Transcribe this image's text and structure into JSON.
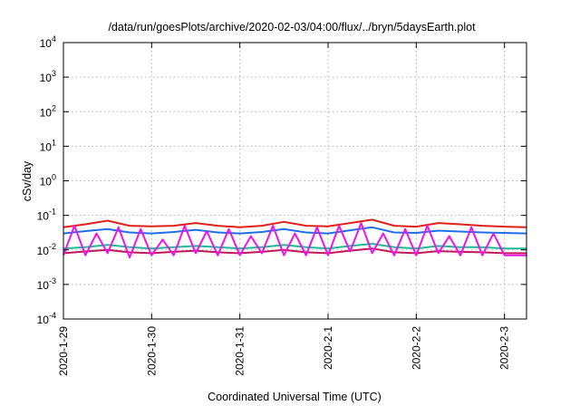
{
  "chart_data": {
    "type": "line",
    "title": "/data/run/goesPlots/archive/2020-02-03/04:00/flux/../bryn/5daysEarth.plot",
    "xlabel": "Coordinated Universal Time (UTC)",
    "ylabel": "cSv/day",
    "yscale": "log",
    "grid": true,
    "ylim": [
      0.0001,
      10000
    ],
    "xlim": [
      "2020-01-29",
      "2020-02-03 06:00"
    ],
    "x_ticks": [
      "2020-1-29",
      "2020-1-30",
      "2020-1-31",
      "2020-2-1",
      "2020-2-2",
      "2020-2-3"
    ],
    "y_ticks": [
      {
        "mantissa": "10",
        "exp": "4",
        "value": 10000
      },
      {
        "mantissa": "10",
        "exp": "3",
        "value": 1000
      },
      {
        "mantissa": "10",
        "exp": "2",
        "value": 100
      },
      {
        "mantissa": "10",
        "exp": "1",
        "value": 10
      },
      {
        "mantissa": "10",
        "exp": "0",
        "value": 1
      },
      {
        "mantissa": "10",
        "exp": "-1",
        "value": 0.1
      },
      {
        "mantissa": "10",
        "exp": "-2",
        "value": 0.01
      },
      {
        "mantissa": "10",
        "exp": "-3",
        "value": 0.001
      },
      {
        "mantissa": "10",
        "exp": "-4",
        "value": 0.0001
      }
    ],
    "series": [
      {
        "color": "#e0201a",
        "x": [
          "2020-01-29 00:00",
          "2020-01-29 06:00",
          "2020-01-29 12:00",
          "2020-01-29 18:00",
          "2020-01-30 00:00",
          "2020-01-30 06:00",
          "2020-01-30 12:00",
          "2020-01-30 18:00",
          "2020-01-31 00:00",
          "2020-01-31 06:00",
          "2020-01-31 12:00",
          "2020-01-31 18:00",
          "2020-02-01 00:00",
          "2020-02-01 06:00",
          "2020-02-01 12:00",
          "2020-02-01 18:00",
          "2020-02-02 00:00",
          "2020-02-02 06:00",
          "2020-02-02 12:00",
          "2020-02-02 18:00",
          "2020-02-03 00:00",
          "2020-02-03 06:00"
        ],
        "values": [
          0.045,
          0.055,
          0.07,
          0.05,
          0.048,
          0.05,
          0.06,
          0.05,
          0.045,
          0.05,
          0.065,
          0.05,
          0.048,
          0.06,
          0.075,
          0.05,
          0.047,
          0.06,
          0.055,
          0.05,
          0.047,
          0.045
        ]
      },
      {
        "color": "#1e6fe8",
        "x": [
          "2020-01-29 00:00",
          "2020-01-29 06:00",
          "2020-01-29 12:00",
          "2020-01-29 18:00",
          "2020-01-30 00:00",
          "2020-01-30 06:00",
          "2020-01-30 12:00",
          "2020-01-30 18:00",
          "2020-01-31 00:00",
          "2020-01-31 06:00",
          "2020-01-31 12:00",
          "2020-01-31 18:00",
          "2020-02-01 00:00",
          "2020-02-01 06:00",
          "2020-02-01 12:00",
          "2020-02-01 18:00",
          "2020-02-02 00:00",
          "2020-02-02 06:00",
          "2020-02-02 12:00",
          "2020-02-02 18:00",
          "2020-02-03 00:00",
          "2020-02-03 06:00"
        ],
        "values": [
          0.03,
          0.035,
          0.04,
          0.032,
          0.03,
          0.033,
          0.038,
          0.032,
          0.03,
          0.033,
          0.04,
          0.032,
          0.03,
          0.037,
          0.045,
          0.032,
          0.031,
          0.036,
          0.034,
          0.032,
          0.031,
          0.03
        ]
      },
      {
        "color": "#20b89a",
        "x": [
          "2020-01-29 00:00",
          "2020-01-29 06:00",
          "2020-01-29 12:00",
          "2020-01-29 18:00",
          "2020-01-30 00:00",
          "2020-01-30 06:00",
          "2020-01-30 12:00",
          "2020-01-30 18:00",
          "2020-01-31 00:00",
          "2020-01-31 06:00",
          "2020-01-31 12:00",
          "2020-01-31 18:00",
          "2020-02-01 00:00",
          "2020-02-01 06:00",
          "2020-02-01 12:00",
          "2020-02-01 18:00",
          "2020-02-02 00:00",
          "2020-02-02 06:00",
          "2020-02-02 12:00",
          "2020-02-02 18:00",
          "2020-02-03 00:00",
          "2020-02-03 06:00"
        ],
        "values": [
          0.011,
          0.012,
          0.014,
          0.012,
          0.011,
          0.012,
          0.013,
          0.012,
          0.011,
          0.012,
          0.014,
          0.012,
          0.011,
          0.013,
          0.015,
          0.012,
          0.011,
          0.013,
          0.012,
          0.012,
          0.011,
          0.011
        ]
      },
      {
        "color": "#c0185a",
        "x": [
          "2020-01-29 00:00",
          "2020-01-29 06:00",
          "2020-01-29 12:00",
          "2020-01-29 18:00",
          "2020-01-30 00:00",
          "2020-01-30 06:00",
          "2020-01-30 12:00",
          "2020-01-30 18:00",
          "2020-01-31 00:00",
          "2020-01-31 06:00",
          "2020-01-31 12:00",
          "2020-01-31 18:00",
          "2020-02-01 00:00",
          "2020-02-01 06:00",
          "2020-02-01 12:00",
          "2020-02-01 18:00",
          "2020-02-02 00:00",
          "2020-02-02 06:00",
          "2020-02-02 12:00",
          "2020-02-02 18:00",
          "2020-02-03 00:00",
          "2020-02-03 06:00"
        ],
        "values": [
          0.008,
          0.009,
          0.01,
          0.0085,
          0.008,
          0.0088,
          0.0095,
          0.0085,
          0.008,
          0.0088,
          0.01,
          0.0085,
          0.008,
          0.0095,
          0.011,
          0.0085,
          0.008,
          0.0092,
          0.0088,
          0.0085,
          0.008,
          0.008
        ]
      },
      {
        "color": "#ee14e6",
        "x": [
          "2020-01-29 00:00",
          "2020-01-29 03:00",
          "2020-01-29 06:00",
          "2020-01-29 09:00",
          "2020-01-29 12:00",
          "2020-01-29 15:00",
          "2020-01-29 18:00",
          "2020-01-29 21:00",
          "2020-01-30 00:00",
          "2020-01-30 03:00",
          "2020-01-30 06:00",
          "2020-01-30 09:00",
          "2020-01-30 12:00",
          "2020-01-30 15:00",
          "2020-01-30 18:00",
          "2020-01-30 21:00",
          "2020-01-31 00:00",
          "2020-01-31 03:00",
          "2020-01-31 06:00",
          "2020-01-31 09:00",
          "2020-01-31 12:00",
          "2020-01-31 15:00",
          "2020-01-31 18:00",
          "2020-01-31 21:00",
          "2020-02-01 00:00",
          "2020-02-01 03:00",
          "2020-02-01 06:00",
          "2020-02-01 09:00",
          "2020-02-01 12:00",
          "2020-02-01 15:00",
          "2020-02-01 18:00",
          "2020-02-01 21:00",
          "2020-02-02 00:00",
          "2020-02-02 03:00",
          "2020-02-02 06:00",
          "2020-02-02 09:00",
          "2020-02-02 12:00",
          "2020-02-02 15:00",
          "2020-02-02 18:00",
          "2020-02-02 21:00",
          "2020-02-03 00:00",
          "2020-02-03 03:00",
          "2020-02-03 06:00"
        ],
        "values": [
          0.007,
          0.05,
          0.007,
          0.03,
          0.008,
          0.045,
          0.006,
          0.04,
          0.007,
          0.02,
          0.007,
          0.05,
          0.008,
          0.035,
          0.007,
          0.04,
          0.007,
          0.025,
          0.008,
          0.05,
          0.007,
          0.03,
          0.007,
          0.045,
          0.007,
          0.05,
          0.009,
          0.06,
          0.008,
          0.03,
          0.007,
          0.04,
          0.007,
          0.05,
          0.008,
          0.025,
          0.007,
          0.045,
          0.007,
          0.03,
          0.007,
          0.007,
          0.007
        ]
      }
    ]
  }
}
